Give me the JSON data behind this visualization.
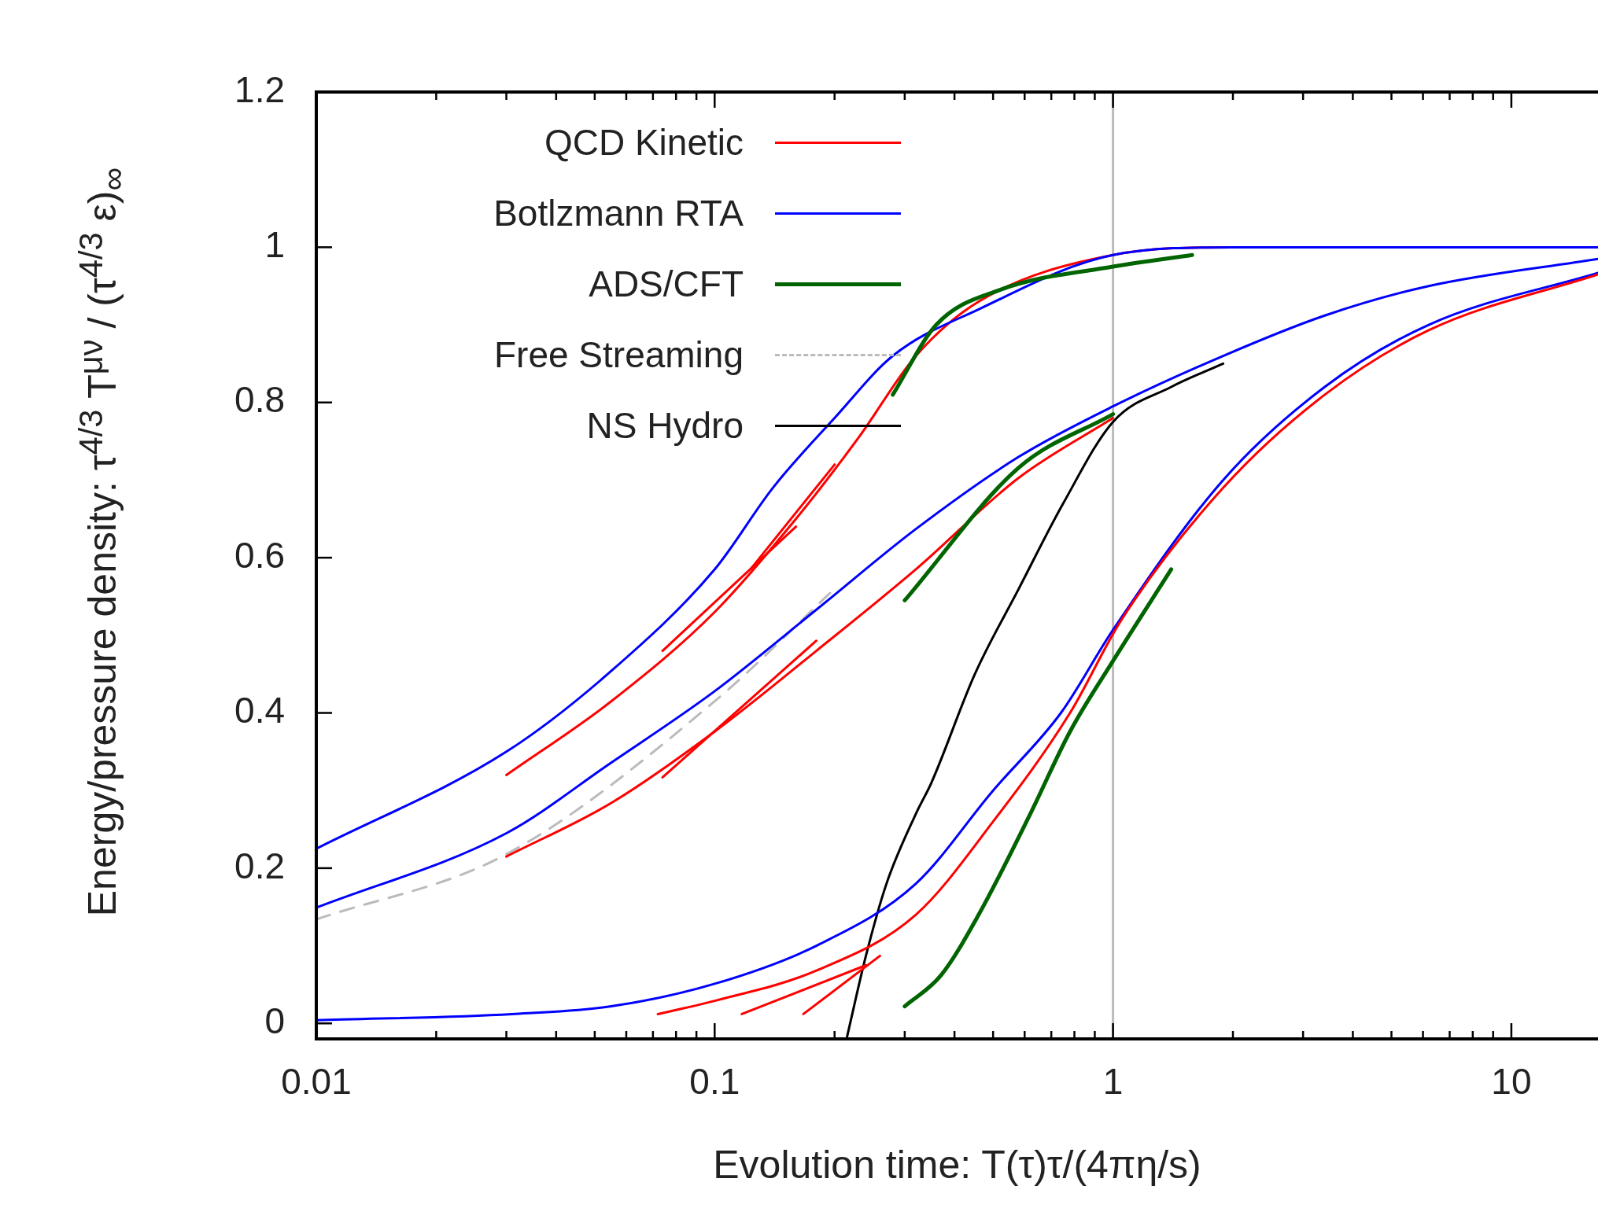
{
  "chart_data": {
    "type": "line",
    "xlabel": "Evolution time: T(τ)τ/(4πη/s)",
    "ylabel": "Energy/pressure density: τ$^{4/3}$ T$^{μν}$ / (τ$^{4/3}$ ε)$_{∞}$",
    "log": "x",
    "grid": false,
    "legend": "top left",
    "marker": "none",
    "xlim": [
      0.01,
      16.5
    ],
    "ylim": [
      -0.02,
      1.2
    ],
    "xticks": [
      0.01,
      {
        "value": 0.02,
        "label": null
      },
      {
        "value": 0.03,
        "label": null
      },
      {
        "value": 0.04,
        "label": null
      },
      {
        "value": 0.05,
        "label": null
      },
      {
        "value": 0.06,
        "label": null
      },
      {
        "value": 0.07,
        "label": null
      },
      {
        "value": 0.08,
        "label": null
      },
      {
        "value": 0.09,
        "label": null
      },
      0.1,
      {
        "value": 0.2,
        "label": null
      },
      {
        "value": 0.3,
        "label": null
      },
      {
        "value": 0.4,
        "label": null
      },
      {
        "value": 0.5,
        "label": null
      },
      {
        "value": 0.6,
        "label": null
      },
      {
        "value": 0.7,
        "label": null
      },
      {
        "value": 0.8,
        "label": null
      },
      {
        "value": 0.9,
        "label": null
      },
      1,
      {
        "value": 2,
        "label": null
      },
      {
        "value": 3,
        "label": null
      },
      {
        "value": 4,
        "label": null
      },
      {
        "value": 5,
        "label": null
      },
      {
        "value": 6,
        "label": null
      },
      {
        "value": 7,
        "label": null
      },
      {
        "value": 8,
        "label": null
      },
      {
        "value": 9,
        "label": null
      },
      10
    ],
    "yticks": [
      0,
      0.2,
      0.4,
      0.6,
      0.8,
      1,
      1.2
    ],
    "ref_lines": [
      {
        "axis": "x",
        "value": 1,
        "color": "#bbbbbb"
      }
    ],
    "series": [
      {
        "name": "QCD Kinetic",
        "color": "#ff0000",
        "x": [
          0.03,
          0.055,
          0.1,
          0.16,
          0.23,
          0.32,
          0.46,
          1,
          2,
          16.5
        ],
        "values": [
          0.32,
          0.415,
          0.53,
          0.65,
          0.755,
          0.86,
          0.93,
          0.99,
          1,
          1
        ]
      },
      {
        "name": "Botlzmann RTA",
        "color": "#0000ff",
        "x": [
          0.01,
          0.03,
          0.055,
          0.1,
          0.14,
          0.2,
          0.28,
          0.46,
          1,
          2,
          16.5
        ],
        "values": [
          0.225,
          0.35,
          0.454,
          0.585,
          0.69,
          0.78,
          0.86,
          0.92,
          0.99,
          1,
          1
        ]
      },
      {
        "name": "ADS/CFT",
        "color": "#006400",
        "x": [
          0.28,
          0.36,
          0.52,
          1,
          1.58
        ],
        "values": [
          0.81,
          0.9,
          0.945,
          0.975,
          0.99
        ]
      },
      {
        "name": "Free Streaming",
        "color": "#bbbbbb",
        "line_style": "dashed",
        "x": [
          0.01,
          0.03,
          0.1,
          0.2
        ],
        "values": [
          0.134,
          0.218,
          0.415,
          0.56
        ]
      },
      {
        "name": "NS Hydro",
        "color": "#000000",
        "x": [
          0.215,
          0.24,
          0.27,
          0.32,
          0.35,
          0.45,
          0.58,
          0.75,
          1,
          1.4,
          1.89
        ],
        "values": [
          -0.017,
          0.088,
          0.18,
          0.27,
          0.31,
          0.45,
          0.56,
          0.67,
          0.775,
          0.82,
          0.85
        ]
      },
      {
        "color": "#0000ff",
        "x": [
          0.01,
          0.03,
          0.055,
          0.1,
          0.18,
          0.32,
          0.58,
          1,
          1.89,
          3.4,
          6.2,
          16.5
        ],
        "values": [
          0.149,
          0.245,
          0.336,
          0.428,
          0.533,
          0.637,
          0.73,
          0.795,
          0.86,
          0.912,
          0.95,
          0.985
        ]
      },
      {
        "color": "#ff0000",
        "x": [
          0.03,
          0.055,
          0.1,
          0.18,
          0.32,
          0.58,
          1
        ],
        "values": [
          0.215,
          0.284,
          0.376,
          0.48,
          0.585,
          0.703,
          0.78
        ]
      },
      {
        "color": "#006400",
        "x": [
          0.3,
          0.58,
          1
        ],
        "values": [
          0.545,
          0.716,
          0.785
        ]
      },
      {
        "color": "#0000ff",
        "x": [
          0.01,
          0.031,
          0.055,
          0.1,
          0.18,
          0.32,
          0.5,
          0.74,
          1,
          1.89,
          3.4,
          6.2,
          16.5
        ],
        "values": [
          0.004,
          0.012,
          0.022,
          0.051,
          0.1,
          0.18,
          0.3,
          0.4,
          0.507,
          0.7,
          0.82,
          0.9,
          0.967
        ]
      },
      {
        "color": "#ff0000",
        "x": [
          0.072,
          0.1,
          0.18,
          0.32,
          0.5,
          0.78,
          1.05,
          1.89,
          3.4,
          6.2,
          16.5
        ],
        "values": [
          0.012,
          0.029,
          0.068,
          0.14,
          0.26,
          0.4,
          0.52,
          0.69,
          0.81,
          0.893,
          0.965
        ]
      },
      {
        "color": "#006400",
        "x": [
          0.3,
          0.37,
          0.46,
          0.62,
          0.78,
          1,
          1.4
        ],
        "values": [
          0.022,
          0.062,
          0.14,
          0.27,
          0.376,
          0.467,
          0.585
        ]
      },
      {
        "color": "#ff0000",
        "x": [
          0.074,
          0.16
        ],
        "values": [
          0.48,
          0.64
        ]
      },
      {
        "color": "#ff0000",
        "x": [
          0.123,
          0.2
        ],
        "values": [
          0.585,
          0.72
        ]
      },
      {
        "color": "#ff0000",
        "x": [
          0.074,
          0.18
        ],
        "values": [
          0.317,
          0.493
        ]
      },
      {
        "color": "#ff0000",
        "x": [
          0.117,
          0.24
        ],
        "values": [
          0.012,
          0.075
        ]
      },
      {
        "color": "#ff0000",
        "x": [
          0.167,
          0.26
        ],
        "values": [
          0.012,
          0.087
        ]
      }
    ]
  }
}
